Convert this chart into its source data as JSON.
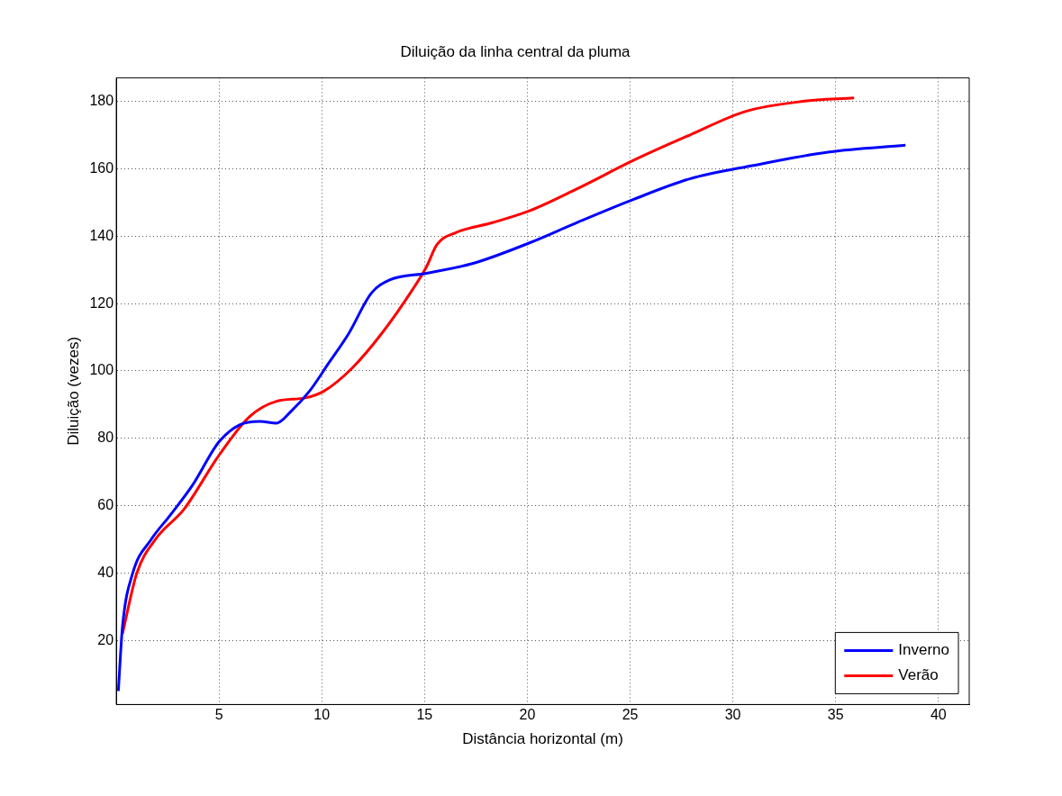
{
  "chart_data": {
    "type": "line",
    "title": "Diluição da linha central da pluma",
    "xlabel": "Distância horizontal (m)",
    "ylabel": "Diluição (vezes)",
    "xlim": [
      0,
      41.5
    ],
    "ylim": [
      1,
      187
    ],
    "xticks": [
      5,
      10,
      15,
      20,
      25,
      30,
      35,
      40
    ],
    "yticks": [
      20,
      40,
      60,
      80,
      100,
      120,
      140,
      160,
      180
    ],
    "grid": true,
    "legend": "bottom right",
    "line_style": "solid",
    "marker": "none",
    "series": [
      {
        "name": "Inverno",
        "color": "#0000ff",
        "x": [
          0.1,
          0.3,
          0.8,
          1.7,
          2.6,
          3.7,
          5,
          6,
          7,
          7.8,
          8.5,
          9.4,
          10.3,
          11.3,
          12.4,
          13.3,
          15.1,
          17.4,
          20.1,
          22.4,
          25.2,
          27.9,
          31,
          34.7,
          38.4
        ],
        "values": [
          5,
          24,
          40,
          50,
          57,
          66,
          79,
          84,
          85,
          84.5,
          88,
          94,
          102,
          111,
          123,
          127,
          129,
          132,
          138,
          144,
          151,
          157,
          161,
          165,
          167
        ]
      },
      {
        "name": "Verão",
        "color": "#ff0000",
        "x": [
          0.3,
          1,
          1.9,
          3.3,
          5,
          6.5,
          7.8,
          9.2,
          10.1,
          11.5,
          12.9,
          14.4,
          15.1,
          15.6,
          16.5,
          18.3,
          20.1,
          22.4,
          25.2,
          27.9,
          30.6,
          33.4,
          35.9
        ],
        "values": [
          22,
          40,
          50,
          59,
          75,
          86.5,
          91,
          92,
          94,
          101,
          111,
          124,
          131,
          137.5,
          141,
          144,
          147.5,
          154,
          162.6,
          170,
          177,
          180,
          181
        ]
      }
    ]
  }
}
